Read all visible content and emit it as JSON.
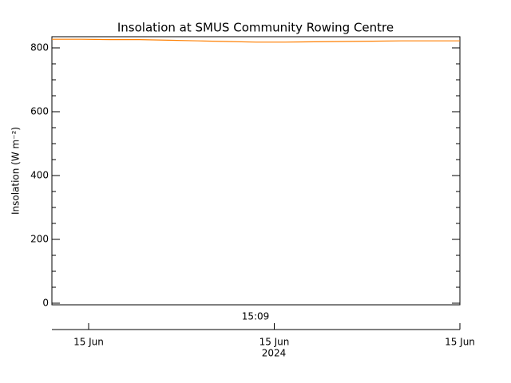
{
  "chart_data": {
    "type": "line",
    "title": "Insolation at SMUS Community Rowing Centre",
    "ylabel": "Insolation (W m⁻²)",
    "series": [
      {
        "name": "Insolation",
        "color": "#ff7f00",
        "values": [
          827,
          827,
          826,
          826,
          824,
          822,
          820,
          818,
          818,
          819,
          820,
          821,
          822,
          822,
          822
        ]
      }
    ],
    "ylim": [
      -5,
      835
    ],
    "yticks": [
      0,
      200,
      400,
      600,
      800
    ],
    "time_label": "15:09",
    "date_ticks": [
      "15 Jun",
      "15 Jun",
      "15 Jun"
    ],
    "year": "2024"
  }
}
